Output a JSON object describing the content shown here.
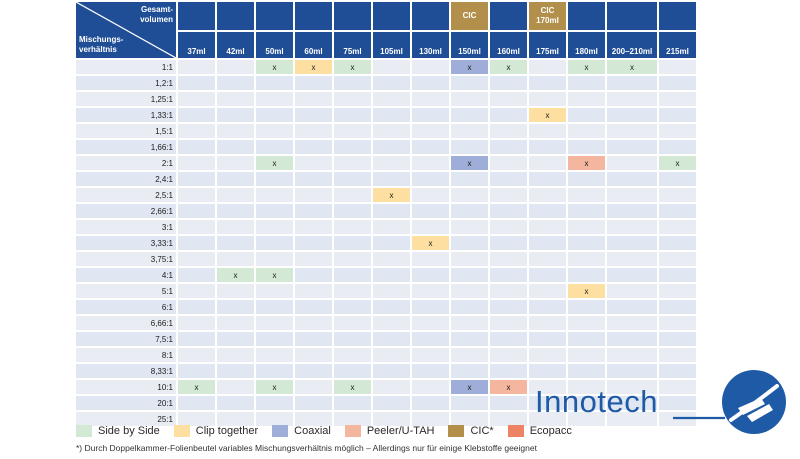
{
  "header": {
    "corner_top": "Gesamt-\nvolumen",
    "corner_bottom": "Mischungs-\nverhältnis",
    "columns": [
      {
        "label": "37ml",
        "top": ""
      },
      {
        "label": "42ml",
        "top": ""
      },
      {
        "label": "50ml",
        "top": ""
      },
      {
        "label": "60ml",
        "top": ""
      },
      {
        "label": "75ml",
        "top": ""
      },
      {
        "label": "105ml",
        "top": ""
      },
      {
        "label": "130ml",
        "top": ""
      },
      {
        "label": "150ml",
        "top": "CIC",
        "cic": true
      },
      {
        "label": "160ml",
        "top": ""
      },
      {
        "label": "175ml",
        "top": "CIC\n170ml",
        "cic": true
      },
      {
        "label": "180ml",
        "top": ""
      },
      {
        "label": "200–210ml",
        "top": ""
      },
      {
        "label": "215ml",
        "top": ""
      }
    ]
  },
  "mark": "x",
  "rows": [
    {
      "ratio": "1:1",
      "cells": [
        "",
        "",
        "side",
        "clip",
        "side",
        "",
        "",
        "coax",
        "side",
        "",
        "side",
        "side",
        ""
      ]
    },
    {
      "ratio": "1,2:1",
      "cells": [
        "",
        "",
        "",
        "",
        "",
        "",
        "",
        "",
        "",
        "",
        "",
        "",
        ""
      ]
    },
    {
      "ratio": "1,25:1",
      "cells": [
        "",
        "",
        "",
        "",
        "",
        "",
        "",
        "",
        "",
        "",
        "",
        "",
        ""
      ]
    },
    {
      "ratio": "1,33:1",
      "cells": [
        "",
        "",
        "",
        "",
        "",
        "",
        "",
        "",
        "",
        "clip",
        "",
        "",
        ""
      ]
    },
    {
      "ratio": "1,5:1",
      "cells": [
        "",
        "",
        "",
        "",
        "",
        "",
        "",
        "",
        "",
        "",
        "",
        "",
        ""
      ]
    },
    {
      "ratio": "1,66:1",
      "cells": [
        "",
        "",
        "",
        "",
        "",
        "",
        "",
        "",
        "",
        "",
        "",
        "",
        ""
      ]
    },
    {
      "ratio": "2:1",
      "cells": [
        "",
        "",
        "side",
        "",
        "",
        "",
        "",
        "coax",
        "",
        "",
        "peel",
        "",
        "side"
      ]
    },
    {
      "ratio": "2,4:1",
      "cells": [
        "",
        "",
        "",
        "",
        "",
        "",
        "",
        "",
        "",
        "",
        "",
        "",
        ""
      ]
    },
    {
      "ratio": "2,5:1",
      "cells": [
        "",
        "",
        "",
        "",
        "",
        "clip",
        "",
        "",
        "",
        "",
        "",
        "",
        ""
      ]
    },
    {
      "ratio": "2,66:1",
      "cells": [
        "",
        "",
        "",
        "",
        "",
        "",
        "",
        "",
        "",
        "",
        "",
        "",
        ""
      ]
    },
    {
      "ratio": "3:1",
      "cells": [
        "",
        "",
        "",
        "",
        "",
        "",
        "",
        "",
        "",
        "",
        "",
        "",
        ""
      ]
    },
    {
      "ratio": "3,33:1",
      "cells": [
        "",
        "",
        "",
        "",
        "",
        "",
        "clip",
        "",
        "",
        "",
        "",
        "",
        ""
      ]
    },
    {
      "ratio": "3,75:1",
      "cells": [
        "",
        "",
        "",
        "",
        "",
        "",
        "",
        "",
        "",
        "",
        "",
        "",
        ""
      ]
    },
    {
      "ratio": "4:1",
      "cells": [
        "",
        "side",
        "side",
        "",
        "",
        "",
        "",
        "",
        "",
        "",
        "",
        "",
        ""
      ]
    },
    {
      "ratio": "5:1",
      "cells": [
        "",
        "",
        "",
        "",
        "",
        "",
        "",
        "",
        "",
        "",
        "clip",
        "",
        ""
      ]
    },
    {
      "ratio": "6:1",
      "cells": [
        "",
        "",
        "",
        "",
        "",
        "",
        "",
        "",
        "",
        "",
        "",
        "",
        ""
      ]
    },
    {
      "ratio": "6,66:1",
      "cells": [
        "",
        "",
        "",
        "",
        "",
        "",
        "",
        "",
        "",
        "",
        "",
        "",
        ""
      ]
    },
    {
      "ratio": "7,5:1",
      "cells": [
        "",
        "",
        "",
        "",
        "",
        "",
        "",
        "",
        "",
        "",
        "",
        "",
        ""
      ]
    },
    {
      "ratio": "8:1",
      "cells": [
        "",
        "",
        "",
        "",
        "",
        "",
        "",
        "",
        "",
        "",
        "",
        "",
        ""
      ]
    },
    {
      "ratio": "8,33:1",
      "cells": [
        "",
        "",
        "",
        "",
        "",
        "",
        "",
        "",
        "",
        "",
        "",
        "",
        ""
      ]
    },
    {
      "ratio": "10:1",
      "cells": [
        "side",
        "",
        "side",
        "",
        "side",
        "",
        "",
        "coax",
        "peel",
        "",
        "",
        "",
        ""
      ]
    },
    {
      "ratio": "20:1",
      "cells": [
        "",
        "",
        "",
        "",
        "",
        "",
        "",
        "",
        "",
        "",
        "",
        "",
        ""
      ]
    },
    {
      "ratio": "25:1",
      "cells": [
        "",
        "",
        "",
        "",
        "",
        "",
        "",
        "",
        "",
        "",
        "",
        "",
        ""
      ]
    }
  ],
  "legend": [
    {
      "key": "side",
      "label": "Side by Side",
      "color": "#d4e8d6"
    },
    {
      "key": "clip",
      "label": "Clip together",
      "color": "#fde0a1"
    },
    {
      "key": "coax",
      "label": "Coaxial",
      "color": "#9faed8"
    },
    {
      "key": "peel",
      "label": "Peeler/U-TAH",
      "color": "#f5b6a0"
    },
    {
      "key": "cic",
      "label": "CIC*",
      "color": "#b38f4c"
    },
    {
      "key": "eco",
      "label": "Ecopacc",
      "color": "#ee8364"
    }
  ],
  "footnote": "*) Durch Doppelkammer-Folienbeutel variables Mischungsverhältnis möglich – Allerdings nur für einige Klebstoffe geeignet",
  "logo": {
    "text": "Innotech",
    "color": "#1f5aa6"
  }
}
